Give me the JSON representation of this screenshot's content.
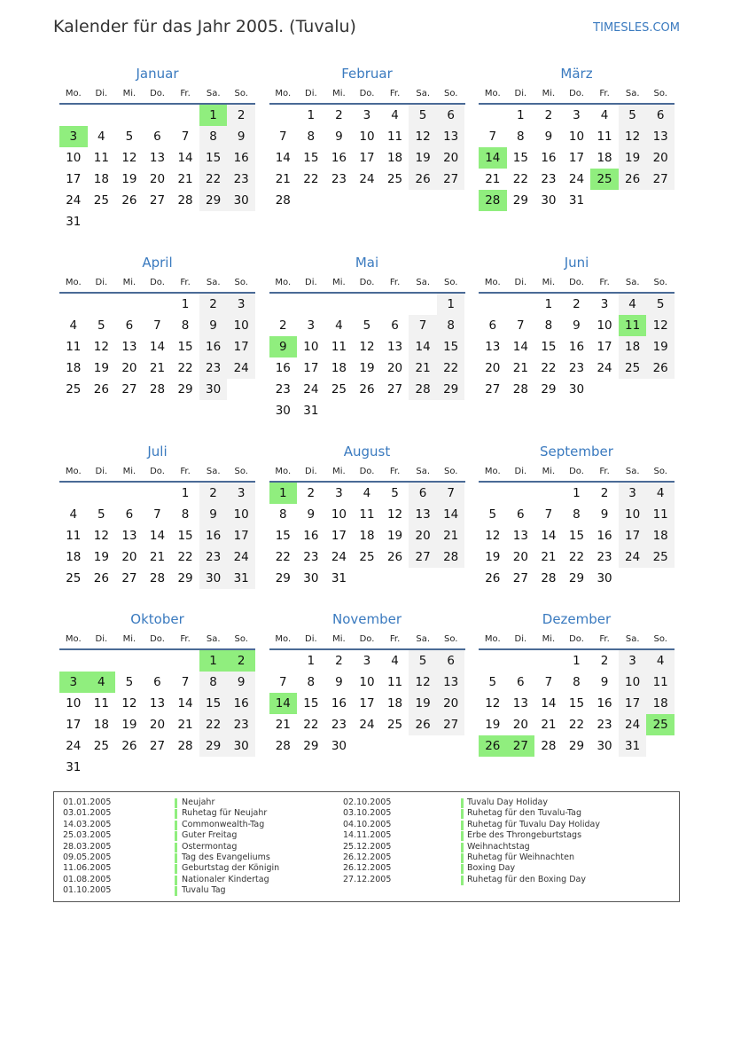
{
  "header": {
    "title": "Kalender für das Jahr 2005. (Tuvalu)",
    "brand": "TIMESLES.COM"
  },
  "year": 2005,
  "weekdays": [
    "Mo.",
    "Di.",
    "Mi.",
    "Do.",
    "Fr.",
    "Sa.",
    "So."
  ],
  "colors": {
    "accent": "#3a7abf",
    "holiday": "#90ee7e",
    "weekend": "#f2f2f2"
  },
  "months": [
    {
      "name": "Januar",
      "holidays": [
        1,
        3
      ]
    },
    {
      "name": "Februar",
      "holidays": []
    },
    {
      "name": "März",
      "holidays": [
        14,
        25,
        28
      ]
    },
    {
      "name": "April",
      "holidays": []
    },
    {
      "name": "Mai",
      "holidays": [
        9
      ]
    },
    {
      "name": "Juni",
      "holidays": [
        11
      ]
    },
    {
      "name": "Juli",
      "holidays": []
    },
    {
      "name": "August",
      "holidays": [
        1
      ]
    },
    {
      "name": "September",
      "holidays": []
    },
    {
      "name": "Oktober",
      "holidays": [
        1,
        2,
        3,
        4
      ]
    },
    {
      "name": "November",
      "holidays": [
        14
      ]
    },
    {
      "name": "Dezember",
      "holidays": [
        25,
        26,
        27
      ]
    }
  ],
  "legend": [
    {
      "date": "01.01.2005",
      "name": "Neujahr"
    },
    {
      "date": "03.01.2005",
      "name": "Ruhetag für Neujahr"
    },
    {
      "date": "14.03.2005",
      "name": "Commonwealth-Tag"
    },
    {
      "date": "25.03.2005",
      "name": "Guter Freitag"
    },
    {
      "date": "28.03.2005",
      "name": "Ostermontag"
    },
    {
      "date": "09.05.2005",
      "name": "Tag des Evangeliums"
    },
    {
      "date": "11.06.2005",
      "name": "Geburtstag der Königin"
    },
    {
      "date": "01.08.2005",
      "name": "Nationaler Kindertag"
    },
    {
      "date": "01.10.2005",
      "name": "Tuvalu Tag"
    },
    {
      "date": "02.10.2005",
      "name": "Tuvalu Day Holiday"
    },
    {
      "date": "03.10.2005",
      "name": "Ruhetag für den Tuvalu-Tag"
    },
    {
      "date": "04.10.2005",
      "name": "Ruhetag für Tuvalu Day Holiday"
    },
    {
      "date": "14.11.2005",
      "name": "Erbe des Throngeburtstags"
    },
    {
      "date": "25.12.2005",
      "name": "Weihnachtstag"
    },
    {
      "date": "26.12.2005",
      "name": "Ruhetag für Weihnachten"
    },
    {
      "date": "26.12.2005",
      "name": "Boxing Day"
    },
    {
      "date": "27.12.2005",
      "name": "Ruhetag für den Boxing Day"
    }
  ]
}
